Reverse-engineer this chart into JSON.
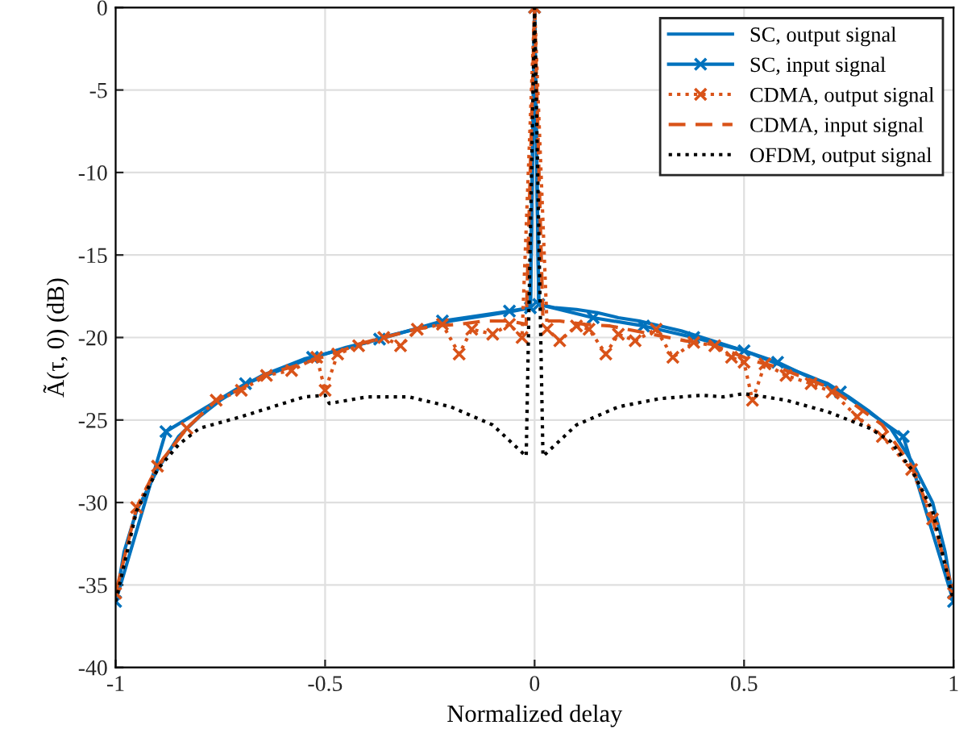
{
  "chart_data": {
    "type": "line",
    "xlabel": "Normalized delay",
    "ylabel": "Ã(τ, 0) (dB)",
    "xlim": [
      -1,
      1
    ],
    "ylim": [
      -40,
      0
    ],
    "xticks": [
      -1,
      -0.5,
      0,
      0.5,
      1
    ],
    "yticks": [
      -40,
      -35,
      -30,
      -25,
      -20,
      -15,
      -10,
      -5,
      0
    ],
    "grid": true,
    "legend": "top right",
    "series": [
      {
        "name": "SC, output signal",
        "color": "#0072bd",
        "line_style": "solid",
        "marker": "none",
        "x": [
          -1,
          -0.98,
          -0.95,
          -0.9,
          -0.85,
          -0.8,
          -0.75,
          -0.7,
          -0.65,
          -0.6,
          -0.55,
          -0.5,
          -0.45,
          -0.4,
          -0.35,
          -0.3,
          -0.25,
          -0.2,
          -0.15,
          -0.1,
          -0.05,
          -0.01,
          0,
          0.01,
          0.05,
          0.1,
          0.15,
          0.2,
          0.25,
          0.3,
          0.35,
          0.4,
          0.45,
          0.5,
          0.55,
          0.6,
          0.65,
          0.7,
          0.75,
          0.8,
          0.85,
          0.9,
          0.95,
          0.98,
          1
        ],
        "values": [
          -36,
          -33,
          -30.5,
          -28,
          -26,
          -24.8,
          -23.8,
          -23,
          -22.3,
          -21.8,
          -21.3,
          -21,
          -20.6,
          -20.3,
          -19.9,
          -19.6,
          -19.3,
          -19,
          -18.8,
          -18.6,
          -18.4,
          -18.2,
          0,
          -18,
          -18.2,
          -18.3,
          -18.5,
          -18.8,
          -19,
          -19.3,
          -19.6,
          -20,
          -20.4,
          -20.8,
          -21.3,
          -21.8,
          -22.3,
          -22.8,
          -23.6,
          -24.5,
          -25.5,
          -27.5,
          -30,
          -33,
          -36
        ]
      },
      {
        "name": "SC, input signal",
        "color": "#0072bd",
        "line_style": "solid",
        "marker": "cross",
        "x": [
          -1,
          -0.88,
          -0.69,
          -0.53,
          -0.37,
          -0.22,
          -0.06,
          -0.01,
          0,
          0.01,
          0.14,
          0.26,
          0.38,
          0.5,
          0.58,
          0.73,
          0.88,
          1
        ],
        "values": [
          -36,
          -25.7,
          -22.8,
          -21.2,
          -20.1,
          -19,
          -18.4,
          -18.2,
          0,
          -18,
          -18.8,
          -19.3,
          -20,
          -20.8,
          -21.5,
          -23.3,
          -26,
          -36
        ]
      },
      {
        "name": "CDMA, output signal",
        "color": "#d95319",
        "line_style": "dotted",
        "marker": "cross",
        "x": [
          -1,
          -0.95,
          -0.9,
          -0.83,
          -0.76,
          -0.7,
          -0.64,
          -0.58,
          -0.52,
          -0.5,
          -0.47,
          -0.42,
          -0.36,
          -0.32,
          -0.28,
          -0.22,
          -0.18,
          -0.15,
          -0.1,
          -0.06,
          -0.03,
          0,
          0.03,
          0.06,
          0.1,
          0.13,
          0.17,
          0.2,
          0.24,
          0.29,
          0.33,
          0.38,
          0.43,
          0.47,
          0.5,
          0.52,
          0.55,
          0.6,
          0.66,
          0.71,
          0.77,
          0.83,
          0.9,
          0.95,
          1
        ],
        "values": [
          -35.5,
          -30.3,
          -27.8,
          -25.5,
          -23.8,
          -23.2,
          -22.3,
          -22,
          -21.2,
          -23.2,
          -21,
          -20.5,
          -20,
          -20.5,
          -19.5,
          -19.2,
          -21,
          -19.5,
          -19.8,
          -19.2,
          -20,
          0,
          -19.5,
          -20.2,
          -19.3,
          -19.5,
          -21,
          -19.8,
          -20.2,
          -19.5,
          -21.2,
          -20.3,
          -20.5,
          -21.2,
          -21.5,
          -23.8,
          -21.6,
          -22.3,
          -22.8,
          -23.3,
          -24.8,
          -26,
          -28,
          -31,
          -35.5
        ]
      },
      {
        "name": "CDMA, input signal",
        "color": "#d95319",
        "line_style": "dashed",
        "marker": "none",
        "x": [
          -1,
          -0.95,
          -0.9,
          -0.83,
          -0.76,
          -0.7,
          -0.64,
          -0.58,
          -0.52,
          -0.47,
          -0.42,
          -0.36,
          -0.3,
          -0.24,
          -0.18,
          -0.12,
          -0.06,
          -0.02,
          0,
          0.02,
          0.06,
          0.12,
          0.18,
          0.24,
          0.3,
          0.36,
          0.42,
          0.47,
          0.52,
          0.58,
          0.64,
          0.7,
          0.76,
          0.83,
          0.9,
          0.95,
          1
        ],
        "values": [
          -35.5,
          -30.3,
          -27.8,
          -25.5,
          -23.8,
          -23.1,
          -22.2,
          -21.8,
          -21.3,
          -20.9,
          -20.4,
          -20,
          -19.6,
          -19.3,
          -19.2,
          -19,
          -19,
          -19.2,
          0,
          -19,
          -19,
          -19.2,
          -19.3,
          -19.6,
          -19.9,
          -20.2,
          -20.4,
          -20.9,
          -21.4,
          -21.8,
          -22.4,
          -23,
          -24,
          -25.3,
          -27.8,
          -31,
          -35.5
        ]
      },
      {
        "name": "OFDM, output signal",
        "color": "#000000",
        "line_style": "dotted",
        "marker": "none",
        "x": [
          -1,
          -0.95,
          -0.9,
          -0.85,
          -0.8,
          -0.7,
          -0.6,
          -0.55,
          -0.5,
          -0.49,
          -0.4,
          -0.3,
          -0.25,
          -0.2,
          -0.1,
          -0.02,
          0,
          0.02,
          0.1,
          0.2,
          0.3,
          0.4,
          0.45,
          0.5,
          0.55,
          0.6,
          0.7,
          0.8,
          0.85,
          0.9,
          0.95,
          1
        ],
        "values": [
          -36,
          -30.5,
          -28,
          -26.5,
          -25.5,
          -24.8,
          -24,
          -23.6,
          -23.5,
          -24,
          -23.6,
          -23.6,
          -23.9,
          -24.2,
          -25.3,
          -27.2,
          0,
          -27.2,
          -25.3,
          -24.2,
          -23.7,
          -23.5,
          -23.6,
          -23.4,
          -23.6,
          -23.8,
          -24.5,
          -25.5,
          -26.3,
          -28,
          -30.5,
          -36
        ]
      }
    ]
  }
}
